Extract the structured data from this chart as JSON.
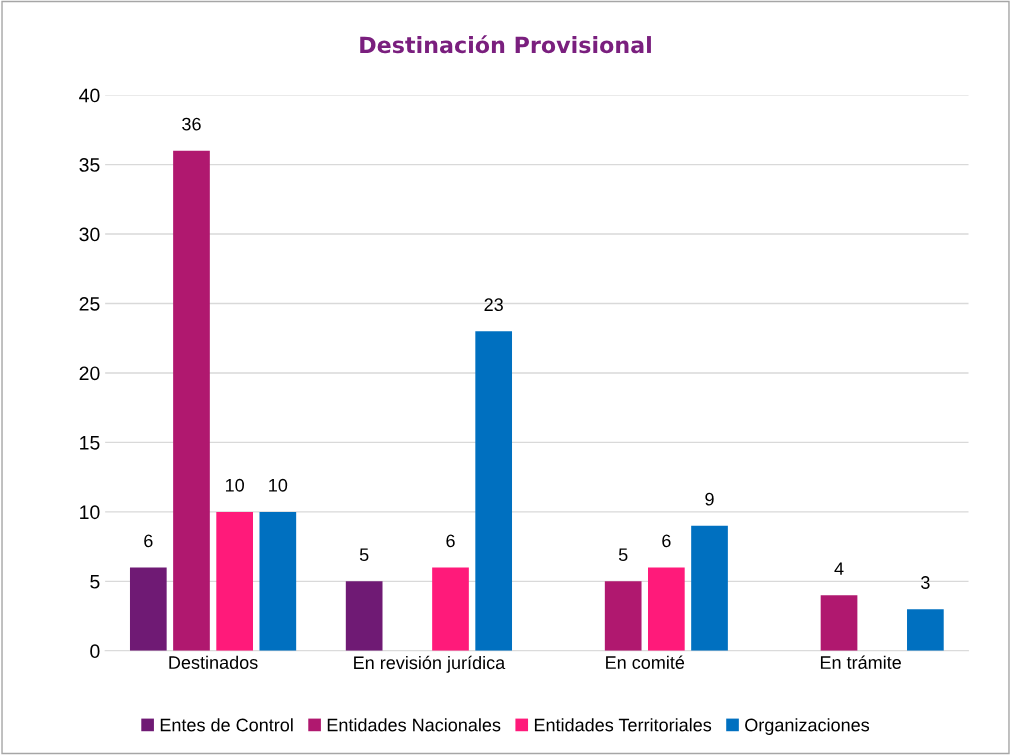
{
  "chart_data": {
    "type": "bar",
    "title": "Destinación Provisional",
    "categories": [
      "Destinados",
      "En revisión jurídica",
      "En comité",
      "En trámite"
    ],
    "series": [
      {
        "name": "Entes de Control",
        "color": "#6f1a74",
        "values": [
          6,
          5,
          null,
          null
        ]
      },
      {
        "name": "Entidades Nacionales",
        "color": "#b0186f",
        "values": [
          36,
          null,
          5,
          4
        ]
      },
      {
        "name": "Entidades Territoriales",
        "color": "#ff1a7a",
        "values": [
          10,
          6,
          6,
          null
        ]
      },
      {
        "name": "Organizaciones",
        "color": "#0070c0",
        "values": [
          10,
          23,
          9,
          3
        ]
      }
    ],
    "ylim": [
      0,
      40
    ],
    "yticks": [
      0,
      5,
      10,
      15,
      20,
      25,
      30,
      35,
      40
    ],
    "grid": "y",
    "legend": "bottom",
    "data_labels": true
  }
}
